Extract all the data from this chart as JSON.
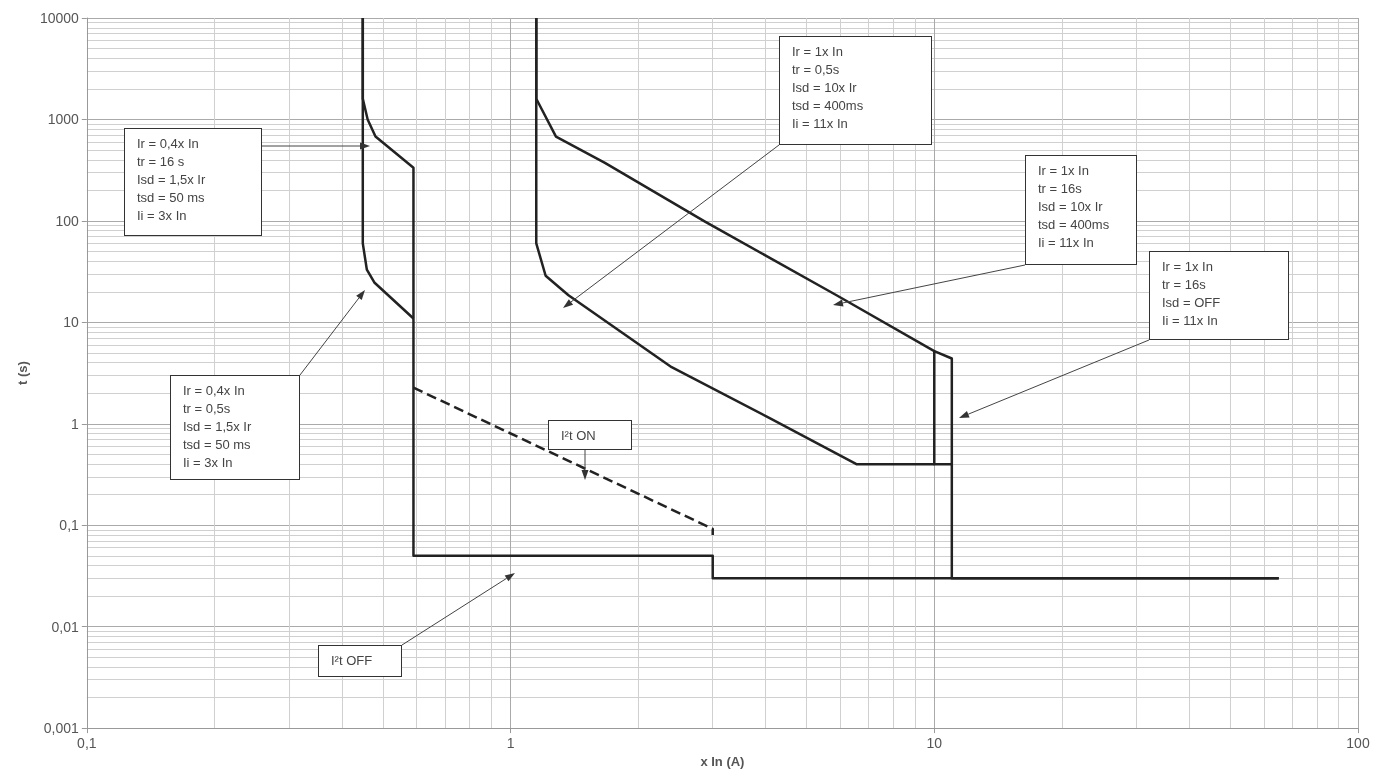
{
  "chart_data": {
    "type": "line",
    "xlabel": "x In (A)",
    "ylabel": "t (s)",
    "log": "xy",
    "grid": true,
    "marker": "none",
    "xlim": [
      0.1,
      100
    ],
    "xticks": [
      {
        "value": 0.1,
        "label": "0,1"
      },
      1,
      10,
      100
    ],
    "ylim": [
      0.001,
      10000
    ],
    "yticks": [
      {
        "value": 0.001,
        "label": "0,001"
      },
      {
        "value": 0.01,
        "label": "0,01"
      },
      {
        "value": 0.1,
        "label": "0,1"
      },
      1,
      10,
      100,
      1000,
      10000
    ],
    "series": [
      {
        "color": "#222222",
        "line_style": "solid",
        "x": [
          0.448,
          0.448,
          0.46,
          0.48,
          0.59,
          0.59,
          3,
          3,
          65
        ],
        "values": [
          10000,
          1600,
          1000,
          680,
          334,
          0.05,
          0.05,
          0.03,
          0.03
        ]
      },
      {
        "color": "#222222",
        "line_style": "solid",
        "x": [
          0.448,
          0.448,
          0.458,
          0.477,
          0.59
        ],
        "values": [
          10000,
          60,
          33,
          24.7,
          10.9
        ]
      },
      {
        "color": "#222222",
        "line_style": "dashed",
        "x": [
          0.59,
          3,
          3
        ],
        "values": [
          2.27,
          0.092,
          0.08
        ]
      },
      {
        "color": "#222222",
        "line_style": "solid",
        "x": [
          1.15,
          1.15,
          1.21,
          1.37,
          2.4,
          4.12,
          6.55,
          10
        ],
        "values": [
          10000,
          60,
          28.8,
          18.5,
          3.61,
          1.12,
          0.4,
          0.4
        ]
      },
      {
        "color": "#222222",
        "line_style": "solid",
        "x": [
          1.15,
          1.15,
          1.28,
          1.67,
          2.87,
          5.88,
          10,
          10,
          11,
          11,
          65
        ],
        "values": [
          10000,
          1600,
          676,
          373,
          99,
          18.5,
          5.2,
          0.4,
          0.4,
          0.03,
          0.03
        ]
      },
      {
        "color": "#222222",
        "line_style": "solid",
        "x": [
          10,
          11,
          11
        ],
        "values": [
          5.2,
          4.4,
          0.4
        ]
      }
    ],
    "annotations": [
      "Ir = 0,4x In\ntr = 16 s\nIsd = 1,5x Ir\ntsd = 50 ms\nIi = 3x In",
      "Ir = 0,4x In\ntr = 0,5s\nIsd = 1,5x Ir\ntsd = 50 ms\nIi = 3x In",
      "Ir = 1x In\ntr = 0,5s\nIsd = 10x Ir\ntsd = 400ms\nIi = 11x In",
      "Ir = 1x In\ntr = 16s\nIsd = 10x Ir\ntsd = 400ms\nIi = 11x In",
      "Ir = 1x In\ntr = 16s\nIsd = OFF\nIi = 11x In",
      "I²t  ON",
      "I²t  OFF"
    ]
  }
}
